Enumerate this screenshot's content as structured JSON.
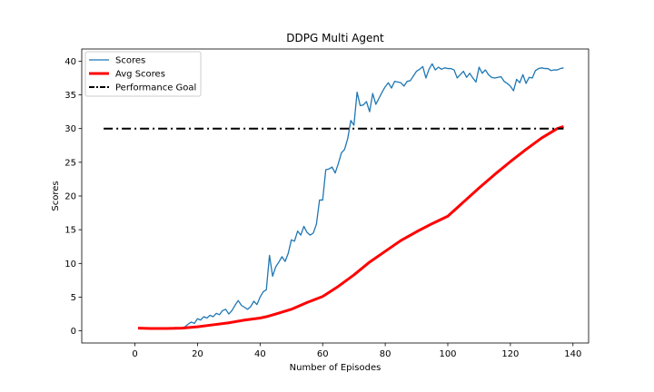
{
  "chart_data": {
    "type": "line",
    "title": "DDPG Multi Agent",
    "xlabel": "Number of Episodes",
    "ylabel": "Scores",
    "xlim": [
      -17,
      145
    ],
    "ylim": [
      -1.8,
      41.8
    ],
    "xticks": [
      0,
      20,
      40,
      60,
      80,
      100,
      120,
      140
    ],
    "yticks": [
      0,
      5,
      10,
      15,
      20,
      25,
      30,
      35,
      40
    ],
    "grid": false,
    "legend_position": "top-left",
    "series": [
      {
        "name": "Scores",
        "color": "#1f77b4",
        "style": "solid",
        "x": [
          1,
          2,
          3,
          4,
          5,
          6,
          7,
          8,
          9,
          10,
          11,
          12,
          13,
          14,
          15,
          16,
          17,
          18,
          19,
          20,
          21,
          22,
          23,
          24,
          25,
          26,
          27,
          28,
          29,
          30,
          31,
          32,
          33,
          34,
          35,
          36,
          37,
          38,
          39,
          40,
          41,
          42,
          43,
          44,
          45,
          46,
          47,
          48,
          49,
          50,
          51,
          52,
          53,
          54,
          55,
          56,
          57,
          58,
          59,
          60,
          61,
          62,
          63,
          64,
          65,
          66,
          67,
          68,
          69,
          70,
          71,
          72,
          73,
          74,
          75,
          76,
          77,
          78,
          79,
          80,
          81,
          82,
          83,
          84,
          85,
          86,
          87,
          88,
          89,
          90,
          91,
          92,
          93,
          94,
          95,
          96,
          97,
          98,
          99,
          100,
          101,
          102,
          103,
          104,
          105,
          106,
          107,
          108,
          109,
          110,
          111,
          112,
          113,
          114,
          115,
          116,
          117,
          118,
          119,
          120,
          121,
          122,
          123,
          124,
          125,
          126,
          127,
          128,
          129,
          130,
          131,
          132,
          133,
          134,
          135,
          136,
          137
        ],
        "y": [
          0.4,
          0.3,
          0.3,
          0.3,
          0.3,
          0.3,
          0.3,
          0.3,
          0.3,
          0.3,
          0.3,
          0.3,
          0.5,
          0.4,
          0.4,
          0.6,
          1.0,
          1.3,
          1.1,
          1.8,
          1.6,
          2.1,
          1.9,
          2.3,
          2.1,
          2.6,
          2.4,
          3.0,
          3.2,
          2.5,
          3.0,
          3.8,
          4.5,
          3.8,
          3.5,
          3.2,
          3.6,
          4.4,
          3.9,
          5.0,
          5.8,
          6.1,
          11.2,
          8.1,
          9.5,
          10.2,
          11.0,
          10.3,
          11.5,
          13.5,
          13.3,
          14.8,
          14.2,
          15.5,
          14.6,
          14.2,
          14.5,
          15.8,
          19.4,
          19.4,
          23.9,
          24.0,
          24.3,
          23.4,
          24.8,
          26.4,
          26.9,
          28.5,
          31.2,
          30.5,
          35.4,
          33.4,
          33.5,
          34.0,
          32.5,
          35.2,
          33.6,
          34.5,
          35.4,
          36.2,
          36.8,
          36.0,
          37.0,
          36.9,
          36.8,
          36.3,
          37.0,
          37.1,
          37.8,
          38.5,
          38.8,
          39.2,
          37.5,
          38.8,
          39.6,
          38.7,
          39.1,
          38.8,
          39.0,
          38.9,
          38.9,
          38.7,
          37.5,
          38.0,
          38.5,
          37.6,
          38.2,
          37.5,
          36.9,
          39.1,
          38.2,
          38.7,
          38.0,
          37.6,
          37.5,
          37.6,
          37.7,
          37.0,
          36.7,
          36.3,
          35.6,
          37.3,
          36.8,
          38.0,
          36.7,
          37.6,
          37.5,
          38.6,
          38.9,
          39.0,
          38.9,
          38.9,
          38.6,
          38.7,
          38.7,
          38.9,
          39.0
        ]
      },
      {
        "name": "Avg Scores",
        "color": "#ff0000",
        "style": "solid-thick",
        "x": [
          1,
          5,
          10,
          15,
          20,
          25,
          30,
          35,
          40,
          42,
          45,
          50,
          55,
          60,
          65,
          70,
          75,
          80,
          85,
          90,
          95,
          100,
          105,
          110,
          115,
          120,
          125,
          130,
          135,
          137
        ],
        "y": [
          0.4,
          0.35,
          0.35,
          0.4,
          0.6,
          0.9,
          1.2,
          1.6,
          1.9,
          2.1,
          2.5,
          3.2,
          4.2,
          5.1,
          6.6,
          8.3,
          10.2,
          11.8,
          13.4,
          14.7,
          15.9,
          17.0,
          19.1,
          21.2,
          23.2,
          25.1,
          26.9,
          28.6,
          30.0,
          30.3
        ]
      },
      {
        "name": "Performance Goal",
        "color": "#000000",
        "style": "dashdot",
        "x": [
          -10,
          137
        ],
        "y": [
          30,
          30
        ]
      }
    ]
  }
}
